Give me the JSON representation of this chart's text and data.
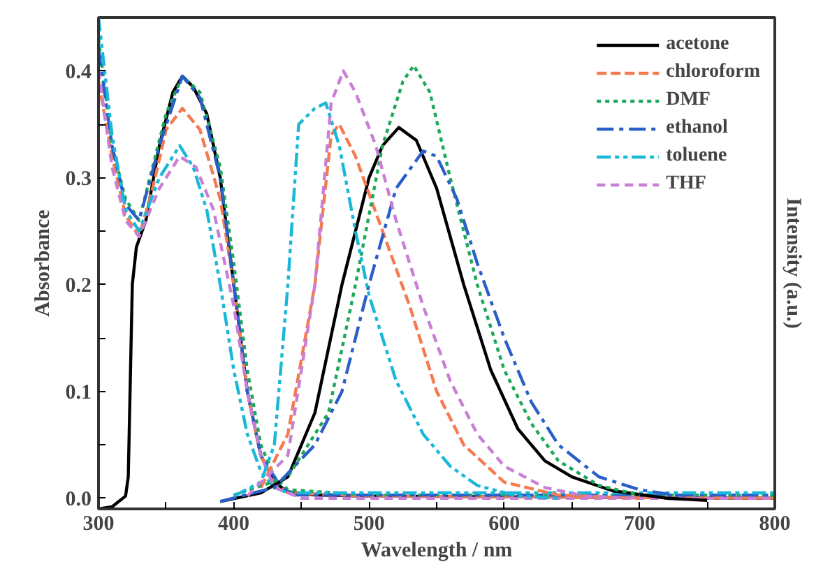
{
  "chart_data": {
    "type": "line",
    "xlabel": "Wavelength / nm",
    "ylabel": "Absorbance",
    "y2label": "Intensity (a.u.)",
    "xlim": [
      300,
      800
    ],
    "ylim": [
      -0.01,
      0.45
    ],
    "xticks": [
      300,
      {
        "value": 350,
        "label": null
      },
      400,
      {
        "value": 450,
        "label": null
      },
      500,
      {
        "value": 550,
        "label": null
      },
      600,
      {
        "value": 650,
        "label": null
      },
      700,
      {
        "value": 750,
        "label": null
      },
      800
    ],
    "yticks": [
      "0.0",
      {
        "value": 0.05,
        "label": null
      },
      {
        "value": 0.1,
        "label": "0.1"
      },
      {
        "value": 0.15,
        "label": null
      },
      {
        "value": 0.2,
        "label": "0.2"
      },
      {
        "value": 0.25,
        "label": null
      },
      {
        "value": 0.3,
        "label": "0.3"
      },
      {
        "value": 0.35,
        "label": null
      },
      {
        "value": 0.4,
        "label": "0.4"
      }
    ],
    "tick_labels": [
      "x",
      "y"
    ],
    "grid": false,
    "legend": "top right",
    "marker": "none",
    "series": [
      {
        "name": "acetone",
        "color": "#000000",
        "line_style": "solid",
        "x": [
          300,
          310,
          320,
          322,
          325,
          328,
          335,
          345,
          355,
          362,
          370,
          380,
          390,
          400,
          410,
          420,
          430,
          440,
          460,
          500,
          800
        ],
        "values": [
          -0.01,
          -0.008,
          0.002,
          0.02,
          0.2,
          0.235,
          0.26,
          0.33,
          0.38,
          0.395,
          0.385,
          0.36,
          0.3,
          0.2,
          0.1,
          0.04,
          0.015,
          0.006,
          0.003,
          0.002,
          0.0
        ]
      },
      {
        "name": "chloroform",
        "color": "#f47b50",
        "line_style": "dashed",
        "x": [
          300,
          310,
          320,
          330,
          340,
          350,
          362,
          375,
          390,
          400,
          410,
          420,
          430,
          440,
          500,
          800
        ],
        "values": [
          0.39,
          0.32,
          0.265,
          0.245,
          0.29,
          0.345,
          0.365,
          0.345,
          0.28,
          0.2,
          0.1,
          0.04,
          0.015,
          0.005,
          0.002,
          0.0
        ]
      },
      {
        "name": "DMF",
        "color": "#1ca85a",
        "line_style": "dotted",
        "x": [
          300,
          310,
          320,
          330,
          340,
          350,
          362,
          375,
          390,
          400,
          410,
          420,
          430,
          440,
          500,
          800
        ],
        "values": [
          0.43,
          0.33,
          0.28,
          0.26,
          0.31,
          0.36,
          0.395,
          0.38,
          0.31,
          0.22,
          0.12,
          0.05,
          0.02,
          0.008,
          0.003,
          0.003
        ]
      },
      {
        "name": "ethanol",
        "color": "#2a5fc8",
        "line_style": "dashdot",
        "x": [
          300,
          310,
          320,
          330,
          345,
          362,
          375,
          390,
          400,
          410,
          420,
          435,
          445,
          800
        ],
        "values": [
          0.42,
          0.33,
          0.275,
          0.26,
          0.33,
          0.395,
          0.375,
          0.3,
          0.2,
          0.1,
          0.04,
          0.01,
          0.003,
          0.003
        ]
      },
      {
        "name": "toluene",
        "color": "#19b8d8",
        "line_style": "dashdotdot",
        "x": [
          300,
          310,
          320,
          330,
          345,
          360,
          370,
          380,
          390,
          400,
          410,
          420,
          430,
          440,
          800
        ],
        "values": [
          0.45,
          0.34,
          0.27,
          0.25,
          0.3,
          0.33,
          0.31,
          0.27,
          0.2,
          0.12,
          0.06,
          0.025,
          0.01,
          0.005,
          0.005
        ]
      },
      {
        "name": "THF",
        "color": "#c97fd6",
        "line_style": "shortdash",
        "x": [
          300,
          310,
          320,
          330,
          345,
          360,
          372,
          385,
          400,
          410,
          420,
          430,
          450,
          800
        ],
        "values": [
          0.4,
          0.31,
          0.26,
          0.245,
          0.29,
          0.32,
          0.31,
          0.27,
          0.18,
          0.1,
          0.04,
          0.01,
          0.0,
          0.0
        ]
      },
      {
        "color": "#000000",
        "line_style": "solid",
        "x": [
          390,
          420,
          440,
          460,
          480,
          500,
          510,
          522,
          535,
          550,
          570,
          590,
          610,
          630,
          650,
          680,
          720,
          750
        ],
        "values": [
          -0.003,
          0.005,
          0.02,
          0.08,
          0.2,
          0.3,
          0.33,
          0.347,
          0.335,
          0.29,
          0.2,
          0.12,
          0.065,
          0.035,
          0.02,
          0.007,
          0.0,
          -0.002
        ]
      },
      {
        "color": "#f47b50",
        "line_style": "dashed",
        "x": [
          420,
          440,
          460,
          472,
          478,
          490,
          510,
          530,
          550,
          570,
          600,
          640,
          700
        ],
        "values": [
          0.01,
          0.06,
          0.2,
          0.34,
          0.35,
          0.32,
          0.25,
          0.18,
          0.1,
          0.05,
          0.015,
          0.003,
          0.0
        ]
      },
      {
        "color": "#1ca85a",
        "line_style": "dotted",
        "x": [
          400,
          440,
          470,
          490,
          510,
          525,
          533,
          545,
          560,
          580,
          600,
          620,
          640,
          670,
          700
        ],
        "values": [
          0.003,
          0.02,
          0.08,
          0.2,
          0.33,
          0.39,
          0.405,
          0.38,
          0.3,
          0.2,
          0.12,
          0.07,
          0.035,
          0.012,
          0.003
        ]
      },
      {
        "color": "#2a5fc8",
        "line_style": "dashdot",
        "x": [
          390,
          430,
          460,
          480,
          500,
          520,
          540,
          550,
          565,
          580,
          600,
          620,
          640,
          670,
          700,
          730
        ],
        "values": [
          -0.003,
          0.01,
          0.05,
          0.1,
          0.2,
          0.29,
          0.325,
          0.32,
          0.28,
          0.22,
          0.15,
          0.09,
          0.05,
          0.02,
          0.008,
          0.002
        ]
      },
      {
        "color": "#19b8d8",
        "line_style": "dashdotdot",
        "x": [
          400,
          420,
          430,
          440,
          448,
          460,
          468,
          478,
          490,
          500,
          520,
          540,
          560,
          580,
          610,
          640
        ],
        "values": [
          0.002,
          0.015,
          0.05,
          0.2,
          0.35,
          0.365,
          0.37,
          0.33,
          0.25,
          0.19,
          0.11,
          0.06,
          0.03,
          0.012,
          0.002,
          0.0
        ]
      },
      {
        "color": "#c97fd6",
        "line_style": "shortdash",
        "x": [
          410,
          440,
          460,
          472,
          481,
          490,
          505,
          520,
          540,
          560,
          580,
          600,
          630,
          660,
          700
        ],
        "values": [
          0.002,
          0.04,
          0.2,
          0.37,
          0.4,
          0.38,
          0.33,
          0.26,
          0.18,
          0.11,
          0.06,
          0.03,
          0.01,
          0.002,
          0.0
        ]
      }
    ]
  }
}
